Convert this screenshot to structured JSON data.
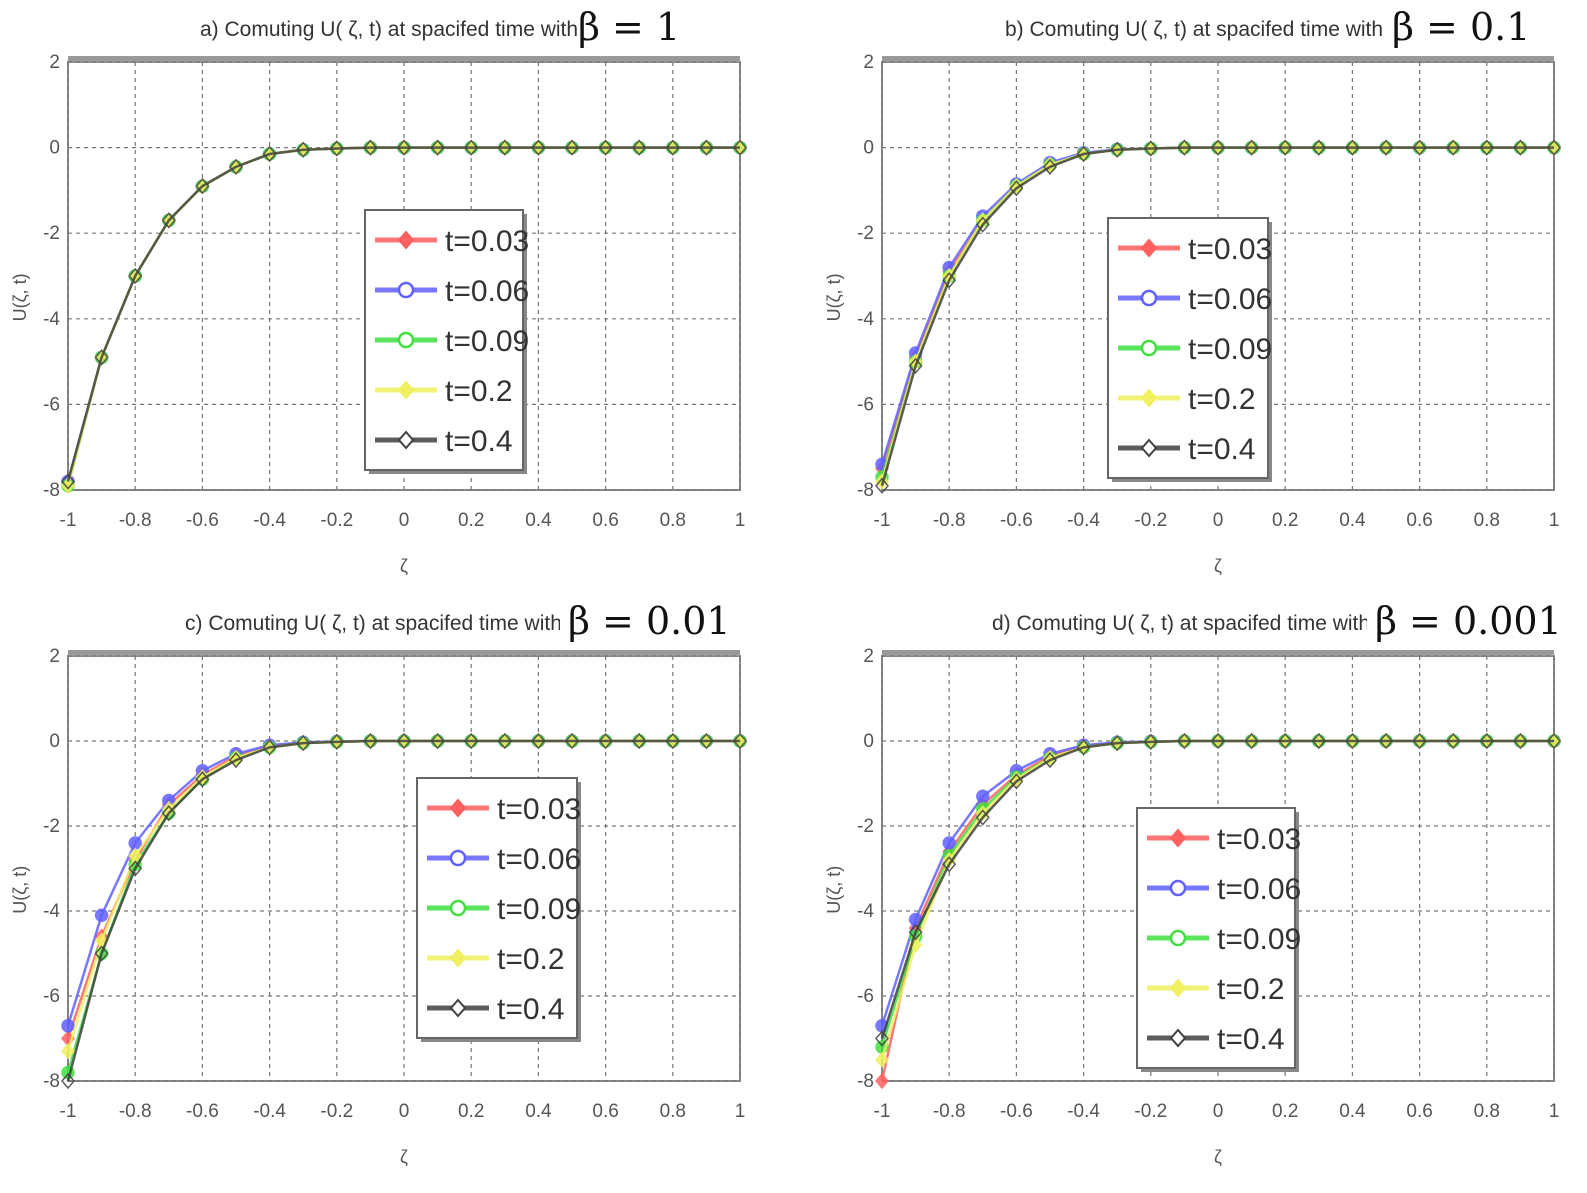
{
  "chart_data": [
    {
      "type": "line",
      "title": "a) Comuting  U( ζ, t) at spacifed time with",
      "title_beta": "β = 1",
      "xlabel": "ζ",
      "ylabel": "U(ζ, t)",
      "xlim": [
        -1,
        1
      ],
      "ylim": [
        -8,
        2
      ],
      "xticks": [
        "-1",
        "-0.8",
        "-0.6",
        "-0.4",
        "-0.2",
        "0",
        "0.2",
        "0.4",
        "0.6",
        "0.8",
        "1"
      ],
      "yticks": [
        "2",
        "0",
        "-2",
        "-4",
        "-6",
        "-8"
      ],
      "grid": true,
      "legend_position": "center",
      "x": [
        -1,
        -0.9,
        -0.8,
        -0.7,
        -0.6,
        -0.5,
        -0.4,
        -0.3,
        -0.2,
        -0.1,
        0,
        0.1,
        0.2,
        0.3,
        0.4,
        0.5,
        0.6,
        0.7,
        0.8,
        0.9,
        1
      ],
      "series": [
        {
          "name": "t=0.03",
          "color": "#ff6060",
          "marker": "diamond",
          "values": [
            -7.9,
            -4.9,
            -3.0,
            -1.7,
            -0.9,
            -0.45,
            -0.15,
            -0.05,
            -0.02,
            0,
            0,
            0,
            0,
            0,
            0,
            0,
            0,
            0,
            0,
            0,
            0
          ]
        },
        {
          "name": "t=0.06",
          "color": "#6060ff",
          "marker": "circle",
          "values": [
            -7.8,
            -4.9,
            -3.0,
            -1.7,
            -0.9,
            -0.45,
            -0.15,
            -0.05,
            -0.02,
            0,
            0,
            0,
            0,
            0,
            0,
            0,
            0,
            0,
            0,
            0,
            0
          ]
        },
        {
          "name": "t=0.09",
          "color": "#40e040",
          "marker": "circle",
          "values": [
            -7.9,
            -4.9,
            -3.0,
            -1.7,
            -0.9,
            -0.45,
            -0.15,
            -0.05,
            -0.02,
            0,
            0,
            0,
            0,
            0,
            0,
            0,
            0,
            0,
            0,
            0,
            0
          ]
        },
        {
          "name": "t=0.2",
          "color": "#f0f060",
          "marker": "diamond",
          "values": [
            -7.9,
            -4.9,
            -3.0,
            -1.7,
            -0.9,
            -0.45,
            -0.15,
            -0.05,
            -0.02,
            0,
            0,
            0,
            0,
            0,
            0,
            0,
            0,
            0,
            0,
            0,
            0
          ]
        },
        {
          "name": "t=0.4",
          "color": "#404040",
          "marker": "diamond",
          "values": [
            -7.8,
            -4.9,
            -3.0,
            -1.7,
            -0.9,
            -0.45,
            -0.15,
            -0.05,
            -0.02,
            0,
            0,
            0,
            0,
            0,
            0,
            0,
            0,
            0,
            0,
            0,
            0
          ]
        }
      ]
    },
    {
      "type": "line",
      "title": "b) Comuting  U( ζ, t) at spacifed time with",
      "title_beta": "β = 0.1",
      "xlabel": "ζ",
      "ylabel": "U(ζ, t)",
      "xlim": [
        -1,
        1
      ],
      "ylim": [
        -8,
        2
      ],
      "xticks": [
        "-1",
        "-0.8",
        "-0.6",
        "-0.4",
        "-0.2",
        "0",
        "0.2",
        "0.4",
        "0.6",
        "0.8",
        "1"
      ],
      "yticks": [
        "2",
        "0",
        "-2",
        "-4",
        "-6",
        "-8"
      ],
      "grid": true,
      "legend_position": "center",
      "x": [
        -1,
        -0.9,
        -0.8,
        -0.7,
        -0.6,
        -0.5,
        -0.4,
        -0.3,
        -0.2,
        -0.1,
        0,
        0.1,
        0.2,
        0.3,
        0.4,
        0.5,
        0.6,
        0.7,
        0.8,
        0.9,
        1
      ],
      "series": [
        {
          "name": "t=0.03",
          "color": "#ff6060",
          "marker": "diamond",
          "values": [
            -7.5,
            -4.9,
            -2.9,
            -1.7,
            -0.9,
            -0.4,
            -0.15,
            -0.05,
            -0.02,
            0,
            0,
            0,
            0,
            0,
            0,
            0,
            0,
            0,
            0,
            0,
            0
          ]
        },
        {
          "name": "t=0.06",
          "color": "#6060ff",
          "marker": "circle",
          "values": [
            -7.4,
            -4.8,
            -2.8,
            -1.6,
            -0.85,
            -0.35,
            -0.12,
            -0.04,
            -0.02,
            0,
            0,
            0,
            0,
            0,
            0,
            0,
            0,
            0,
            0,
            0,
            0
          ]
        },
        {
          "name": "t=0.09",
          "color": "#40e040",
          "marker": "circle",
          "values": [
            -7.7,
            -5.0,
            -3.0,
            -1.7,
            -0.9,
            -0.4,
            -0.15,
            -0.05,
            -0.02,
            0,
            0,
            0,
            0,
            0,
            0,
            0,
            0,
            0,
            0,
            0,
            0
          ]
        },
        {
          "name": "t=0.2",
          "color": "#f0f060",
          "marker": "diamond",
          "values": [
            -7.8,
            -5.0,
            -3.0,
            -1.7,
            -0.9,
            -0.4,
            -0.15,
            -0.05,
            -0.02,
            0,
            0,
            0,
            0,
            0,
            0,
            0,
            0,
            0,
            0,
            0,
            0
          ]
        },
        {
          "name": "t=0.4",
          "color": "#404040",
          "marker": "diamond",
          "values": [
            -7.9,
            -5.1,
            -3.1,
            -1.8,
            -0.95,
            -0.45,
            -0.15,
            -0.05,
            -0.02,
            0,
            0,
            0,
            0,
            0,
            0,
            0,
            0,
            0,
            0,
            0,
            0
          ]
        }
      ]
    },
    {
      "type": "line",
      "title": "c) Comuting  U( ζ, t) at spacifed time with",
      "title_beta": "β = 0.01",
      "xlabel": "ζ",
      "ylabel": "U(ζ, t)",
      "xlim": [
        -1,
        1
      ],
      "ylim": [
        -8,
        2
      ],
      "xticks": [
        "-1",
        "-0.8",
        "-0.6",
        "-0.4",
        "-0.2",
        "0",
        "0.2",
        "0.4",
        "0.6",
        "0.8",
        "1"
      ],
      "yticks": [
        "2",
        "0",
        "-2",
        "-4",
        "-6",
        "-8"
      ],
      "grid": true,
      "legend_position": "center",
      "x": [
        -1,
        -0.9,
        -0.8,
        -0.7,
        -0.6,
        -0.5,
        -0.4,
        -0.3,
        -0.2,
        -0.1,
        0,
        0.1,
        0.2,
        0.3,
        0.4,
        0.5,
        0.6,
        0.7,
        0.8,
        0.9,
        1
      ],
      "series": [
        {
          "name": "t=0.03",
          "color": "#ff6060",
          "marker": "diamond",
          "values": [
            -7.0,
            -4.6,
            -2.8,
            -1.5,
            -0.8,
            -0.35,
            -0.12,
            -0.04,
            -0.02,
            0,
            0,
            0,
            0,
            0,
            0,
            0,
            0,
            0,
            0,
            0,
            0
          ]
        },
        {
          "name": "t=0.06",
          "color": "#6060ff",
          "marker": "circle",
          "values": [
            -6.7,
            -4.1,
            -2.4,
            -1.4,
            -0.7,
            -0.3,
            -0.1,
            -0.03,
            -0.01,
            0,
            0,
            0,
            0,
            0,
            0,
            0,
            0,
            0,
            0,
            0,
            0
          ]
        },
        {
          "name": "t=0.09",
          "color": "#40e040",
          "marker": "circle",
          "values": [
            -7.8,
            -5.0,
            -2.9,
            -1.7,
            -0.9,
            -0.4,
            -0.15,
            -0.05,
            -0.02,
            0,
            0,
            0,
            0,
            0,
            0,
            0,
            0,
            0,
            0,
            0,
            0
          ]
        },
        {
          "name": "t=0.2",
          "color": "#f0f060",
          "marker": "diamond",
          "values": [
            -7.3,
            -4.7,
            -2.7,
            -1.6,
            -0.85,
            -0.4,
            -0.15,
            -0.05,
            -0.02,
            0,
            0,
            0,
            0,
            0,
            0,
            0,
            0,
            0,
            0,
            0,
            0
          ]
        },
        {
          "name": "t=0.4",
          "color": "#404040",
          "marker": "diamond",
          "values": [
            -8.0,
            -5.0,
            -3.0,
            -1.7,
            -0.9,
            -0.45,
            -0.15,
            -0.05,
            -0.02,
            0,
            0,
            0,
            0,
            0,
            0,
            0,
            0,
            0,
            0,
            0,
            0
          ]
        }
      ]
    },
    {
      "type": "line",
      "title": "d) Comuting  U( ζ, t) at spacifed time with",
      "title_beta": "β = 0.001",
      "xlabel": "ζ",
      "ylabel": "U(ζ, t)",
      "xlim": [
        -1,
        1
      ],
      "ylim": [
        -8,
        2
      ],
      "xticks": [
        "-1",
        "-0.8",
        "-0.6",
        "-0.4",
        "-0.2",
        "0",
        "0.2",
        "0.4",
        "0.6",
        "0.8",
        "1"
      ],
      "yticks": [
        "2",
        "0",
        "-2",
        "-4",
        "-6",
        "-8"
      ],
      "grid": true,
      "legend_position": "bottom-center",
      "x": [
        -1,
        -0.9,
        -0.8,
        -0.7,
        -0.6,
        -0.5,
        -0.4,
        -0.3,
        -0.2,
        -0.1,
        0,
        0.1,
        0.2,
        0.3,
        0.4,
        0.5,
        0.6,
        0.7,
        0.8,
        0.9,
        1
      ],
      "series": [
        {
          "name": "t=0.03",
          "color": "#ff6060",
          "marker": "diamond",
          "values": [
            -8.0,
            -4.4,
            -2.6,
            -1.5,
            -0.8,
            -0.35,
            -0.12,
            -0.04,
            -0.02,
            0,
            0,
            0,
            0,
            0,
            0,
            0,
            0,
            0,
            0,
            0,
            0
          ]
        },
        {
          "name": "t=0.06",
          "color": "#6060ff",
          "marker": "circle",
          "values": [
            -6.7,
            -4.2,
            -2.4,
            -1.3,
            -0.7,
            -0.3,
            -0.1,
            -0.03,
            -0.01,
            0,
            0,
            0,
            0,
            0,
            0,
            0,
            0,
            0,
            0,
            0,
            0
          ]
        },
        {
          "name": "t=0.09",
          "color": "#40e040",
          "marker": "circle",
          "values": [
            -7.2,
            -4.6,
            -2.7,
            -1.6,
            -0.85,
            -0.4,
            -0.15,
            -0.05,
            -0.02,
            0,
            0,
            0,
            0,
            0,
            0,
            0,
            0,
            0,
            0,
            0,
            0
          ]
        },
        {
          "name": "t=0.2",
          "color": "#f0f060",
          "marker": "diamond",
          "values": [
            -7.5,
            -4.8,
            -2.8,
            -1.7,
            -0.9,
            -0.4,
            -0.15,
            -0.05,
            -0.02,
            0,
            0,
            0,
            0,
            0,
            0,
            0,
            0,
            0,
            0,
            0,
            0
          ]
        },
        {
          "name": "t=0.4",
          "color": "#404040",
          "marker": "diamond",
          "values": [
            -7.0,
            -4.5,
            -2.9,
            -1.8,
            -0.95,
            -0.45,
            -0.15,
            -0.05,
            -0.02,
            0,
            0,
            0,
            0,
            0,
            0,
            0,
            0,
            0,
            0,
            0,
            0
          ]
        }
      ]
    }
  ]
}
